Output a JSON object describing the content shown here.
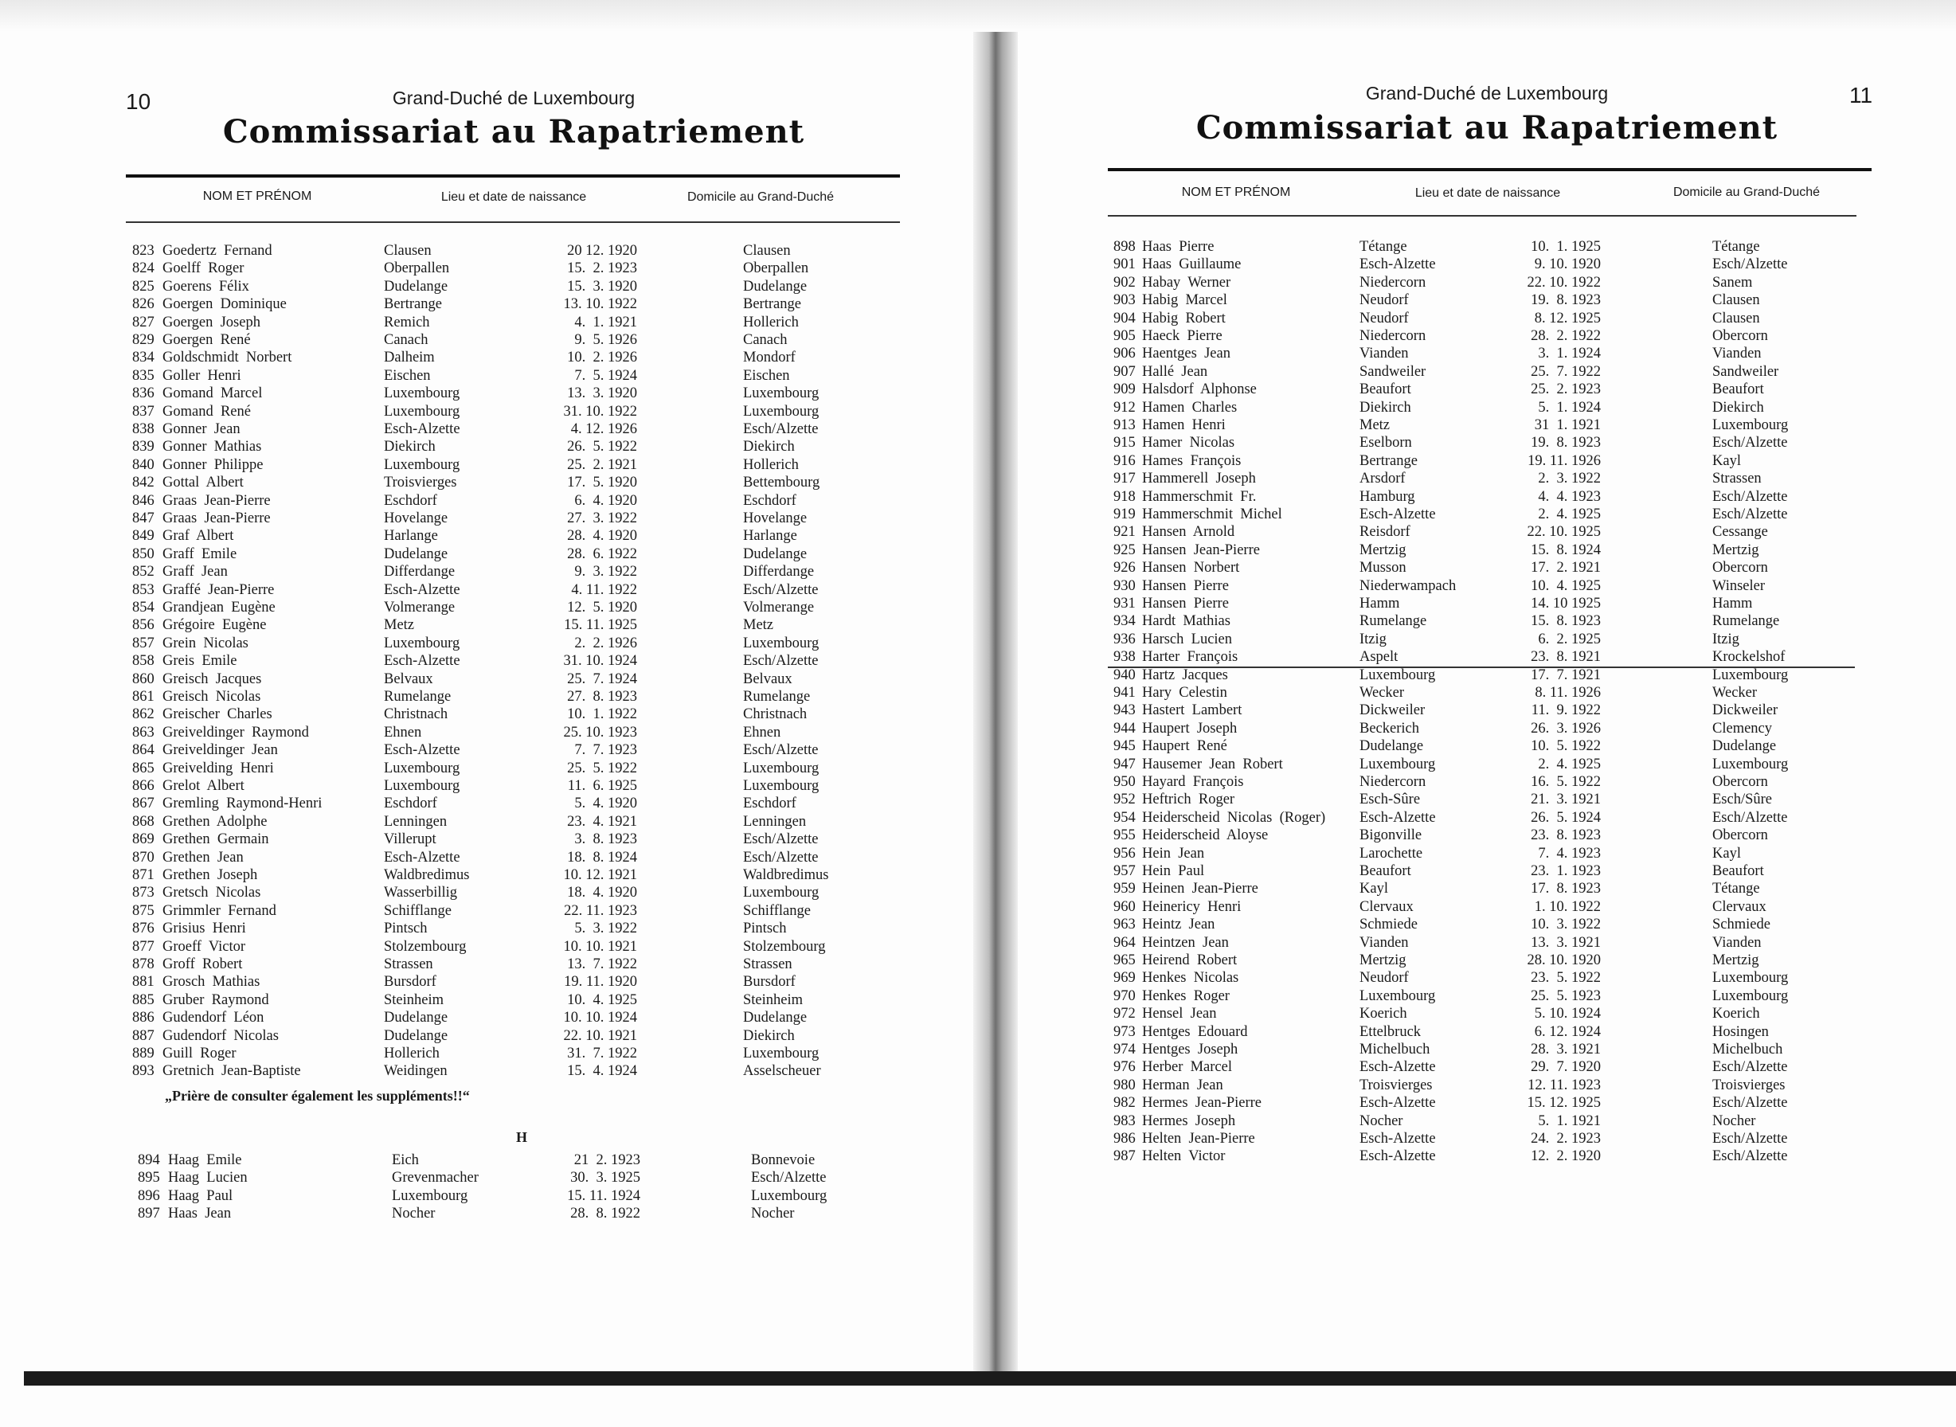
{
  "left_page": {
    "page_number": "10",
    "country": "Grand-Duché de Luxembourg",
    "title": "Commissariat au Rapatriement",
    "headers": {
      "name": "NOM ET PRÉNOM",
      "birth": "Lieu et date de naissance",
      "domicile": "Domicile au Grand-Duché"
    },
    "rows": [
      [
        "823",
        "Goedertz  Fernand",
        "Clausen",
        "20 12. 1920",
        "Clausen"
      ],
      [
        "824",
        "Goelff  Roger",
        "Oberpallen",
        "15.  2. 1923",
        "Oberpallen"
      ],
      [
        "825",
        "Goerens  Félix",
        "Dudelange",
        "15.  3. 1920",
        "Dudelange"
      ],
      [
        "826",
        "Goergen  Dominique",
        "Bertrange",
        "13. 10. 1922",
        "Bertrange"
      ],
      [
        "827",
        "Goergen  Joseph",
        "Remich",
        "4.  1. 1921",
        "Hollerich"
      ],
      [
        "829",
        "Goergen  René",
        "Canach",
        "9.  5. 1926",
        "Canach"
      ],
      [
        "834",
        "Goldschmidt  Norbert",
        "Dalheim",
        "10.  2. 1926",
        "Mondorf"
      ],
      [
        "835",
        "Goller  Henri",
        "Eischen",
        "7.  5. 1924",
        "Eischen"
      ],
      [
        "836",
        "Gomand  Marcel",
        "Luxembourg",
        "13.  3. 1920",
        "Luxembourg"
      ],
      [
        "837",
        "Gomand  René",
        "Luxembourg",
        "31. 10. 1922",
        "Luxembourg"
      ],
      [
        "838",
        "Gonner  Jean",
        "Esch-Alzette",
        "4. 12. 1926",
        "Esch/Alzette"
      ],
      [
        "839",
        "Gonner  Mathias",
        "Diekirch",
        "26.  5. 1922",
        "Diekirch"
      ],
      [
        "840",
        "Gonner  Philippe",
        "Luxembourg",
        "25.  2. 1921",
        "Hollerich"
      ],
      [
        "842",
        "Gottal  Albert",
        "Troisvierges",
        "17.  5. 1920",
        "Bettembourg"
      ],
      [
        "846",
        "Graas  Jean-Pierre",
        "Eschdorf",
        "6.  4. 1920",
        "Eschdorf"
      ],
      [
        "847",
        "Graas  Jean-Pierre",
        "Hovelange",
        "27.  3. 1922",
        "Hovelange"
      ],
      [
        "849",
        "Graf  Albert",
        "Harlange",
        "28.  4. 1920",
        "Harlange"
      ],
      [
        "850",
        "Graff  Emile",
        "Dudelange",
        "28.  6. 1922",
        "Dudelange"
      ],
      [
        "852",
        "Graff  Jean",
        "Differdange",
        "9.  3. 1922",
        "Differdange"
      ],
      [
        "853",
        "Graffé  Jean-Pierre",
        "Esch-Alzette",
        "4. 11. 1922",
        "Esch/Alzette"
      ],
      [
        "854",
        "Grandjean  Eugène",
        "Volmerange",
        "12.  5. 1920",
        "Volmerange"
      ],
      [
        "856",
        "Grégoire  Eugène",
        "Metz",
        "15. 11. 1925",
        "Metz"
      ],
      [
        "857",
        "Grein  Nicolas",
        "Luxembourg",
        "2.  2. 1926",
        "Luxembourg"
      ],
      [
        "858",
        "Greis  Emile",
        "Esch-Alzette",
        "31. 10. 1924",
        "Esch/Alzette"
      ],
      [
        "860",
        "Greisch  Jacques",
        "Belvaux",
        "25.  7. 1924",
        "Belvaux"
      ],
      [
        "861",
        "Greisch  Nicolas",
        "Rumelange",
        "27.  8. 1923",
        "Rumelange"
      ],
      [
        "862",
        "Greischer  Charles",
        "Christnach",
        "10.  1. 1922",
        "Christnach"
      ],
      [
        "863",
        "Greiveldinger  Raymond",
        "Ehnen",
        "25. 10. 1923",
        "Ehnen"
      ],
      [
        "864",
        "Greiveldinger  Jean",
        "Esch-Alzette",
        "7.  7. 1923",
        "Esch/Alzette"
      ],
      [
        "865",
        "Greivelding  Henri",
        "Luxembourg",
        "25.  5. 1922",
        "Luxembourg"
      ],
      [
        "866",
        "Grelot  Albert",
        "Luxembourg",
        "11.  6. 1925",
        "Luxembourg"
      ],
      [
        "867",
        "Gremling  Raymond-Henri",
        "Eschdorf",
        "5.  4. 1920",
        "Eschdorf"
      ],
      [
        "868",
        "Grethen  Adolphe",
        "Lenningen",
        "23.  4. 1921",
        "Lenningen"
      ],
      [
        "869",
        "Grethen  Germain",
        "Villerupt",
        "3.  8. 1923",
        "Esch/Alzette"
      ],
      [
        "870",
        "Grethen  Jean",
        "Esch-Alzette",
        "18.  8. 1924",
        "Esch/Alzette"
      ],
      [
        "871",
        "Grethen  Joseph",
        "Waldbredimus",
        "10. 12. 1921",
        "Waldbredimus"
      ],
      [
        "873",
        "Gretsch  Nicolas",
        "Wasserbillig",
        "18.  4. 1920",
        "Luxembourg"
      ],
      [
        "875",
        "Grimmler  Fernand",
        "Schifflange",
        "22. 11. 1923",
        "Schifflange"
      ],
      [
        "876",
        "Grisius  Henri",
        "Pintsch",
        "5.  3. 1922",
        "Pintsch"
      ],
      [
        "877",
        "Groeff  Victor",
        "Stolzembourg",
        "10. 10. 1921",
        "Stolzembourg"
      ],
      [
        "878",
        "Groff  Robert",
        "Strassen",
        "13.  7. 1922",
        "Strassen"
      ],
      [
        "881",
        "Grosch  Mathias",
        "Bursdorf",
        "19. 11. 1920",
        "Bursdorf"
      ],
      [
        "885",
        "Gruber  Raymond",
        "Steinheim",
        "10.  4. 1925",
        "Steinheim"
      ],
      [
        "886",
        "Gudendorf  Léon",
        "Dudelange",
        "10. 10. 1924",
        "Dudelange"
      ],
      [
        "887",
        "Gudendorf  Nicolas",
        "Dudelange",
        "22. 10. 1921",
        "Diekirch"
      ],
      [
        "889",
        "Guill  Roger",
        "Hollerich",
        "31.  7. 1922",
        "Luxembourg"
      ],
      [
        "893",
        "Gretnich  Jean-Baptiste",
        "Weidingen",
        "15.  4. 1924",
        "Asselscheuer"
      ]
    ],
    "note": "„Prière de consulter également les suppléments!!“",
    "section_letter": "H",
    "rows_h": [
      [
        "894",
        "Haag  Emile",
        "Eich",
        "21  2. 1923",
        "Bonnevoie"
      ],
      [
        "895",
        "Haag  Lucien",
        "Grevenmacher",
        "30.  3. 1925",
        "Esch/Alzette"
      ],
      [
        "896",
        "Haag  Paul",
        "Luxembourg",
        "15. 11. 1924",
        "Luxembourg"
      ],
      [
        "897",
        "Haas  Jean",
        "Nocher",
        "28.  8. 1922",
        "Nocher"
      ]
    ]
  },
  "right_page": {
    "page_number": "11",
    "country": "Grand-Duché de Luxembourg",
    "title": "Commissariat au Rapatriement",
    "headers": {
      "name": "NOM ET PRÉNOM",
      "birth": "Lieu et date de naissance",
      "domicile": "Domicile au Grand-Duché"
    },
    "rows": [
      [
        "898",
        "Haas  Pierre",
        "Tétange",
        "10.  1. 1925",
        "Tétange"
      ],
      [
        "901",
        "Haas  Guillaume",
        "Esch-Alzette",
        "9. 10. 1920",
        "Esch/Alzette"
      ],
      [
        "902",
        "Habay  Werner",
        "Niedercorn",
        "22. 10. 1922",
        "Sanem"
      ],
      [
        "903",
        "Habig  Marcel",
        "Neudorf",
        "19.  8. 1923",
        "Clausen"
      ],
      [
        "904",
        "Habig  Robert",
        "Neudorf",
        "8. 12. 1925",
        "Clausen"
      ],
      [
        "905",
        "Haeck  Pierre",
        "Niedercorn",
        "28.  2. 1922",
        "Obercorn"
      ],
      [
        "906",
        "Haentges  Jean",
        "Vianden",
        "3.  1. 1924",
        "Vianden"
      ],
      [
        "907",
        "Hallé  Jean",
        "Sandweiler",
        "25.  7. 1922",
        "Sandweiler"
      ],
      [
        "909",
        "Halsdorf  Alphonse",
        "Beaufort",
        "25.  2. 1923",
        "Beaufort"
      ],
      [
        "912",
        "Hamen  Charles",
        "Diekirch",
        "5.  1. 1924",
        "Diekirch"
      ],
      [
        "913",
        "Hamen  Henri",
        "Metz",
        "31  1. 1921",
        "Luxembourg"
      ],
      [
        "915",
        "Hamer  Nicolas",
        "Eselborn",
        "19.  8. 1923",
        "Esch/Alzette"
      ],
      [
        "916",
        "Hames  François",
        "Bertrange",
        "19. 11. 1926",
        "Kayl"
      ],
      [
        "917",
        "Hammerell  Joseph",
        "Arsdorf",
        "2.  3. 1922",
        "Strassen"
      ],
      [
        "918",
        "Hammerschmit  Fr.",
        "Hamburg",
        "4.  4. 1923",
        "Esch/Alzette"
      ],
      [
        "919",
        "Hammerschmit  Michel",
        "Esch-Alzette",
        "2.  4. 1925",
        "Esch/Alzette"
      ],
      [
        "921",
        "Hansen  Arnold",
        "Reisdorf",
        "22. 10. 1925",
        "Cessange"
      ],
      [
        "925",
        "Hansen  Jean-Pierre",
        "Mertzig",
        "15.  8. 1924",
        "Mertzig"
      ],
      [
        "926",
        "Hansen  Norbert",
        "Musson",
        "17.  2. 1921",
        "Obercorn"
      ],
      [
        "930",
        "Hansen  Pierre",
        "Niederwampach",
        "10.  4. 1925",
        "Winseler"
      ],
      [
        "931",
        "Hansen  Pierre",
        "Hamm",
        "14. 10 1925",
        "Hamm"
      ],
      [
        "934",
        "Hardt  Mathias",
        "Rumelange",
        "15.  8. 1923",
        "Rumelange"
      ],
      [
        "936",
        "Harsch  Lucien",
        "Itzig",
        "6.  2. 1925",
        "Itzig"
      ],
      [
        "938",
        "Harter  François",
        "Aspelt",
        "23.  8. 1921",
        "Krockelshof"
      ],
      [
        "940",
        "Hartz  Jacques",
        "Luxembourg",
        "17.  7. 1921",
        "Luxembourg"
      ],
      [
        "941",
        "Hary  Celestin",
        "Wecker",
        "8. 11. 1926",
        "Wecker"
      ],
      [
        "943",
        "Hastert  Lambert",
        "Dickweiler",
        "11.  9. 1922",
        "Dickweiler"
      ],
      [
        "944",
        "Haupert  Joseph",
        "Beckerich",
        "26.  3. 1926",
        "Clemency"
      ],
      [
        "945",
        "Haupert  René",
        "Dudelange",
        "10.  5. 1922",
        "Dudelange"
      ],
      [
        "947",
        "Hausemer  Jean  Robert",
        "Luxembourg",
        "2.  4. 1925",
        "Luxembourg"
      ],
      [
        "950",
        "Hayard  François",
        "Niedercorn",
        "16.  5. 1922",
        "Obercorn"
      ],
      [
        "952",
        "Heftrich  Roger",
        "Esch-Sûre",
        "21.  3. 1921",
        "Esch/Sûre"
      ],
      [
        "954",
        "Heiderscheid  Nicolas  (Roger)",
        "Esch-Alzette",
        "26.  5. 1924",
        "Esch/Alzette"
      ],
      [
        "955",
        "Heiderscheid  Aloyse",
        "Bigonville",
        "23.  8. 1923",
        "Obercorn"
      ],
      [
        "956",
        "Hein  Jean",
        "Larochette",
        "7.  4. 1923",
        "Kayl"
      ],
      [
        "957",
        "Hein  Paul",
        "Beaufort",
        "23.  1. 1923",
        "Beaufort"
      ],
      [
        "959",
        "Heinen  Jean-Pierre",
        "Kayl",
        "17.  8. 1923",
        "Tétange"
      ],
      [
        "960",
        "Heinericy  Henri",
        "Clervaux",
        "1. 10. 1922",
        "Clervaux"
      ],
      [
        "963",
        "Heintz  Jean",
        "Schmiede",
        "10.  3. 1922",
        "Schmiede"
      ],
      [
        "964",
        "Heintzen  Jean",
        "Vianden",
        "13.  3. 1921",
        "Vianden"
      ],
      [
        "965",
        "Heirend  Robert",
        "Mertzig",
        "28. 10. 1920",
        "Mertzig"
      ],
      [
        "969",
        "Henkes  Nicolas",
        "Neudorf",
        "23.  5. 1922",
        "Luxembourg"
      ],
      [
        "970",
        "Henkes  Roger",
        "Luxembourg",
        "25.  5. 1923",
        "Luxembourg"
      ],
      [
        "972",
        "Hensel  Jean",
        "Koerich",
        "5. 10. 1924",
        "Koerich"
      ],
      [
        "973",
        "Hentges  Edouard",
        "Ettelbruck",
        "6. 12. 1924",
        "Hosingen"
      ],
      [
        "974",
        "Hentges  Joseph",
        "Michelbuch",
        "28.  3. 1921",
        "Michelbuch"
      ],
      [
        "976",
        "Herber  Marcel",
        "Esch-Alzette",
        "29.  7. 1920",
        "Esch/Alzette"
      ],
      [
        "980",
        "Herman  Jean",
        "Troisvierges",
        "12. 11. 1923",
        "Troisvierges"
      ],
      [
        "982",
        "Hermes  Jean-Pierre",
        "Esch-Alzette",
        "15. 12. 1925",
        "Esch/Alzette"
      ],
      [
        "983",
        "Hermes  Joseph",
        "Nocher",
        "5.  1. 1921",
        "Nocher"
      ],
      [
        "986",
        "Helten  Jean-Pierre",
        "Esch-Alzette",
        "24.  2. 1923",
        "Esch/Alzette"
      ],
      [
        "987",
        "Helten  Victor",
        "Esch-Alzette",
        "12.  2. 1920",
        "Esch/Alzette"
      ]
    ]
  }
}
